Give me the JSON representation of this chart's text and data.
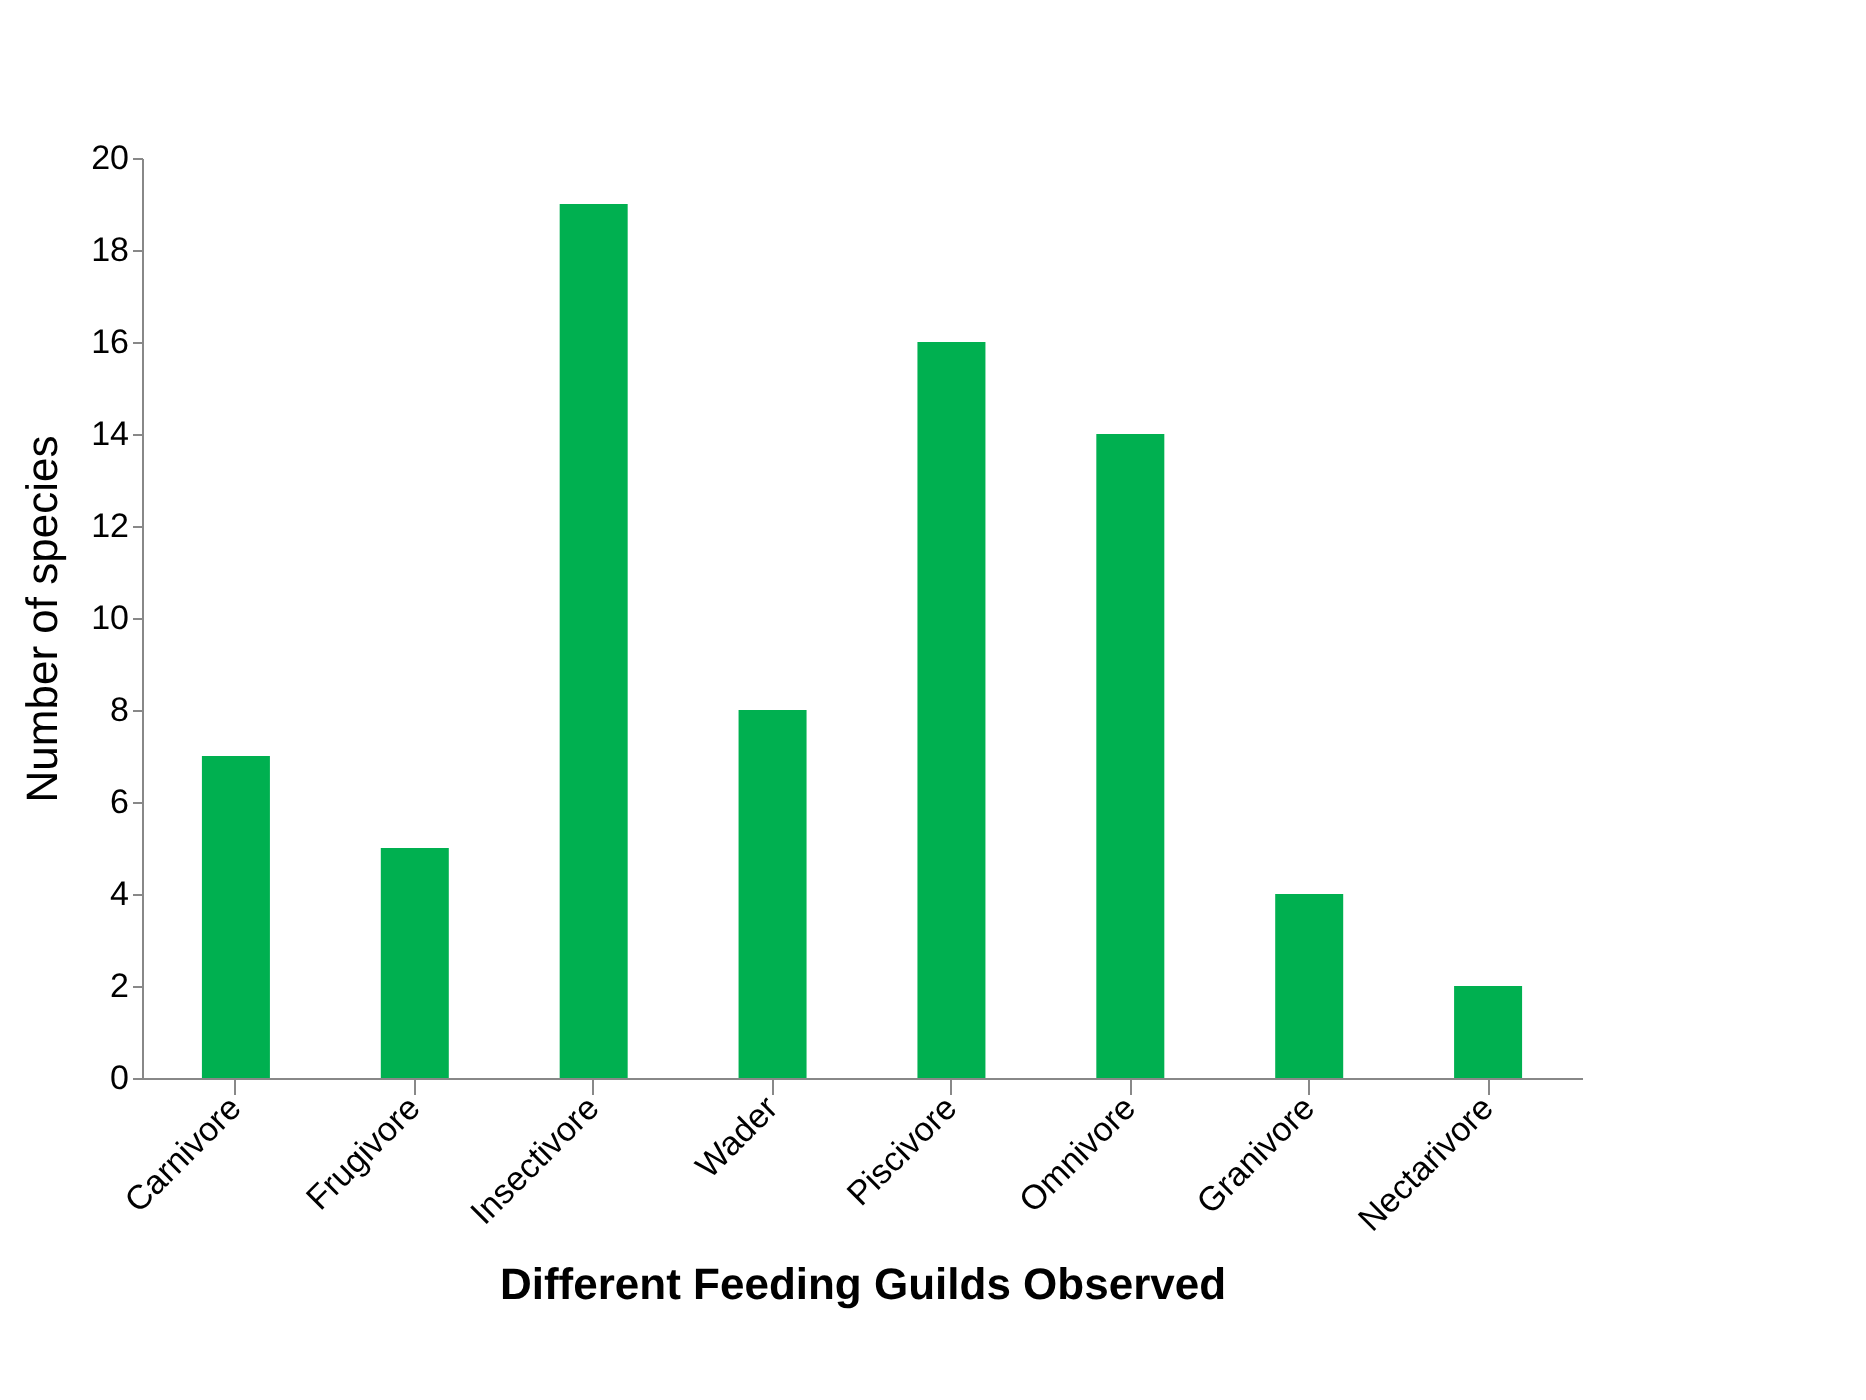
{
  "chart_data": {
    "type": "bar",
    "xlabel": "Different Feeding Guilds Observed",
    "ylabel": "Number of species",
    "categories": [
      "Carnivore",
      "Frugivore",
      "Insectivore",
      "Wader",
      "Piscivore",
      "Omnivore",
      "Granivore",
      "Nectarivore"
    ],
    "values": [
      7,
      5,
      19,
      8,
      16,
      14,
      4,
      2
    ],
    "color": "#00b050",
    "ylim": [
      0,
      20
    ],
    "yticks": [
      0,
      2,
      4,
      6,
      8,
      10,
      12,
      14,
      16,
      18,
      20
    ],
    "grid": false
  }
}
